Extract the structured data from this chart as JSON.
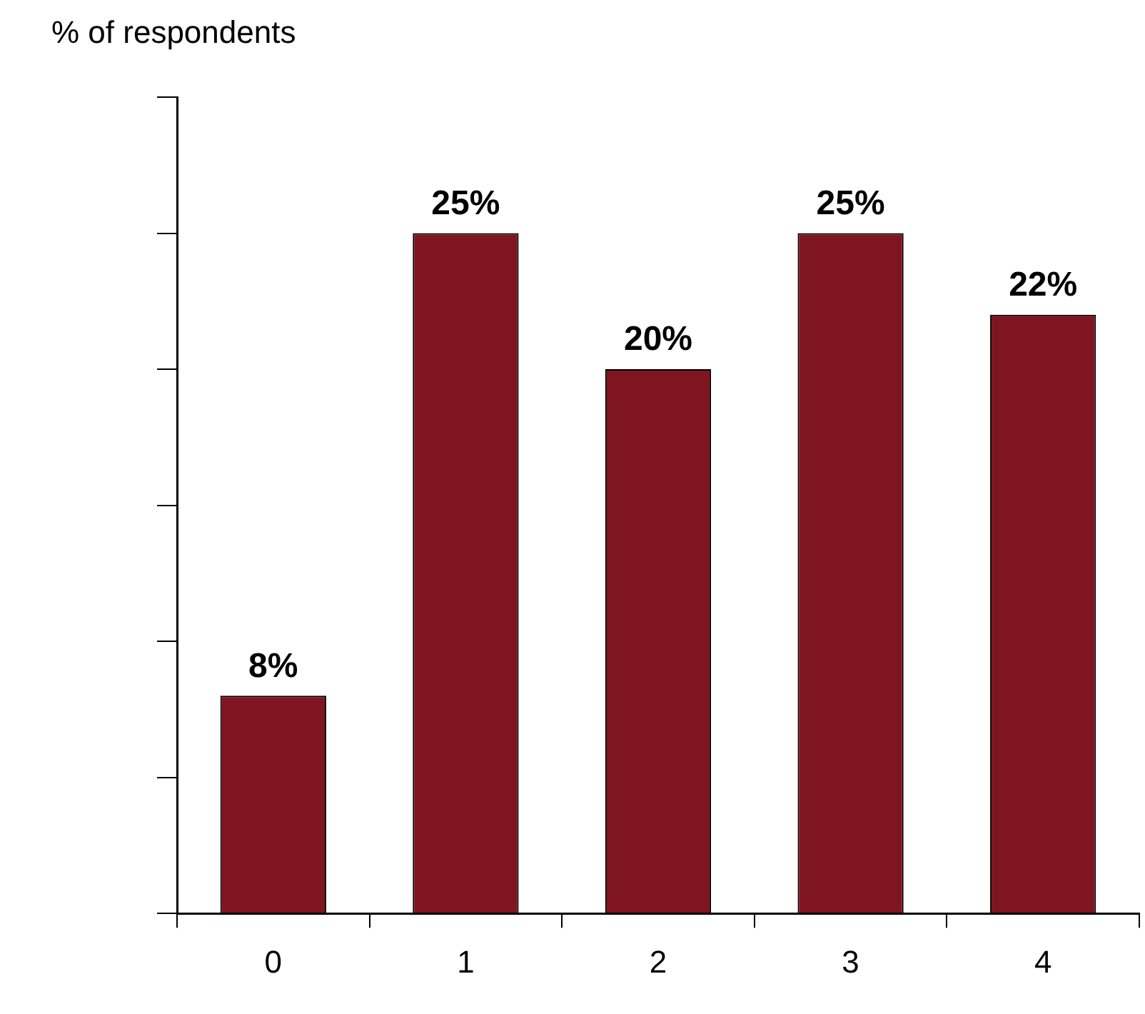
{
  "chart_data": {
    "type": "bar",
    "annotations": [
      "% of respondents"
    ],
    "categories": [
      "0",
      "1",
      "2",
      "3",
      "4"
    ],
    "values": [
      8,
      25,
      20,
      25,
      22
    ],
    "value_labels": [
      "8%",
      "25%",
      "20%",
      "25%",
      "22%"
    ],
    "color": "#7f1520",
    "tick_labels": "x",
    "grid": false,
    "legend": false
  }
}
